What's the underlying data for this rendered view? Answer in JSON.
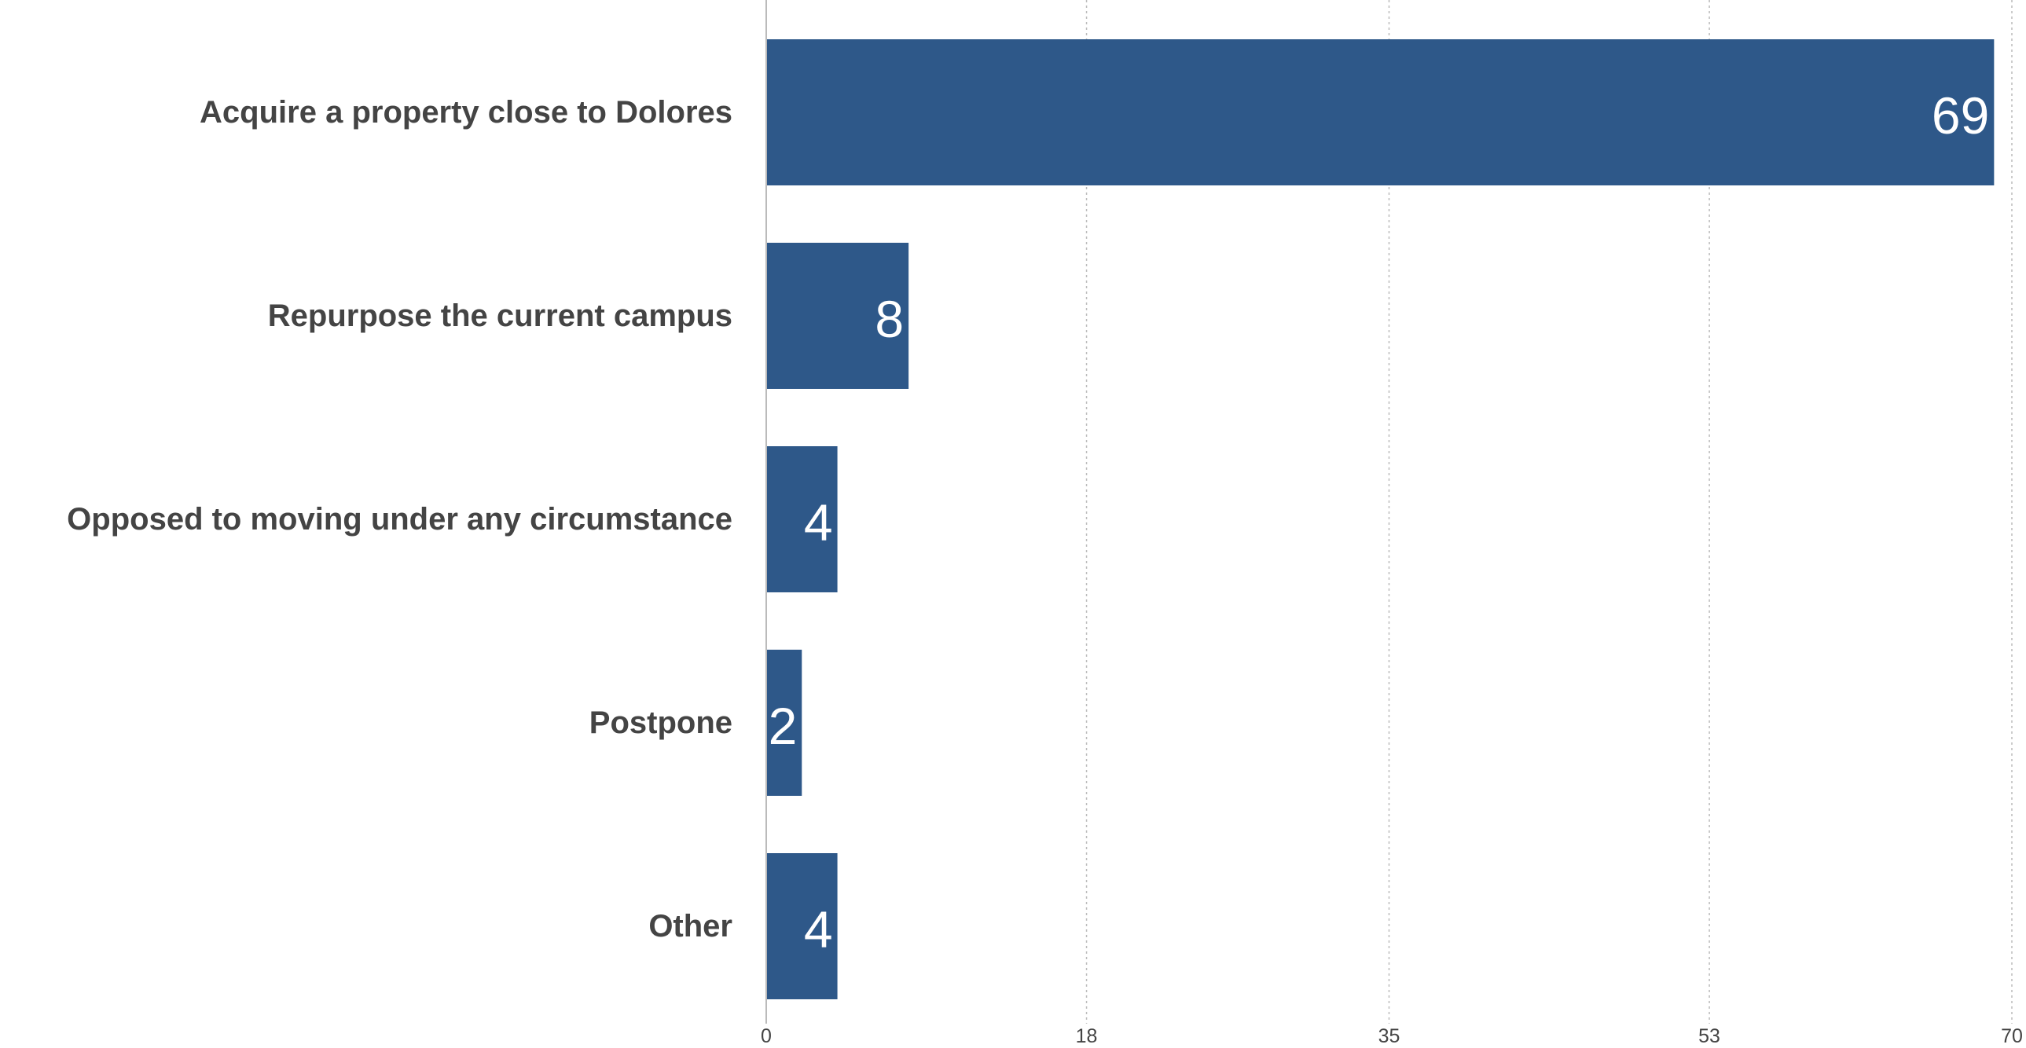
{
  "chart_data": {
    "type": "bar",
    "orientation": "horizontal",
    "categories": [
      "Acquire a property close to Dolores",
      "Repurpose the current campus",
      "Opposed to moving under any circumstance",
      "Postpone",
      "Other"
    ],
    "values": [
      69,
      8,
      4,
      2,
      4
    ],
    "xticks": [
      0,
      18,
      35,
      53,
      70
    ],
    "xlim": [
      0,
      70
    ],
    "title": "",
    "xlabel": "",
    "ylabel": "",
    "grid": "vertical dotted",
    "legend": "none",
    "colors": {
      "bar": "#2e5889",
      "value_label": "#ffffff",
      "category_label": "#444444",
      "tick_label": "#444444",
      "grid": "#bbbbbb",
      "axis": "#bbbbbb"
    }
  }
}
